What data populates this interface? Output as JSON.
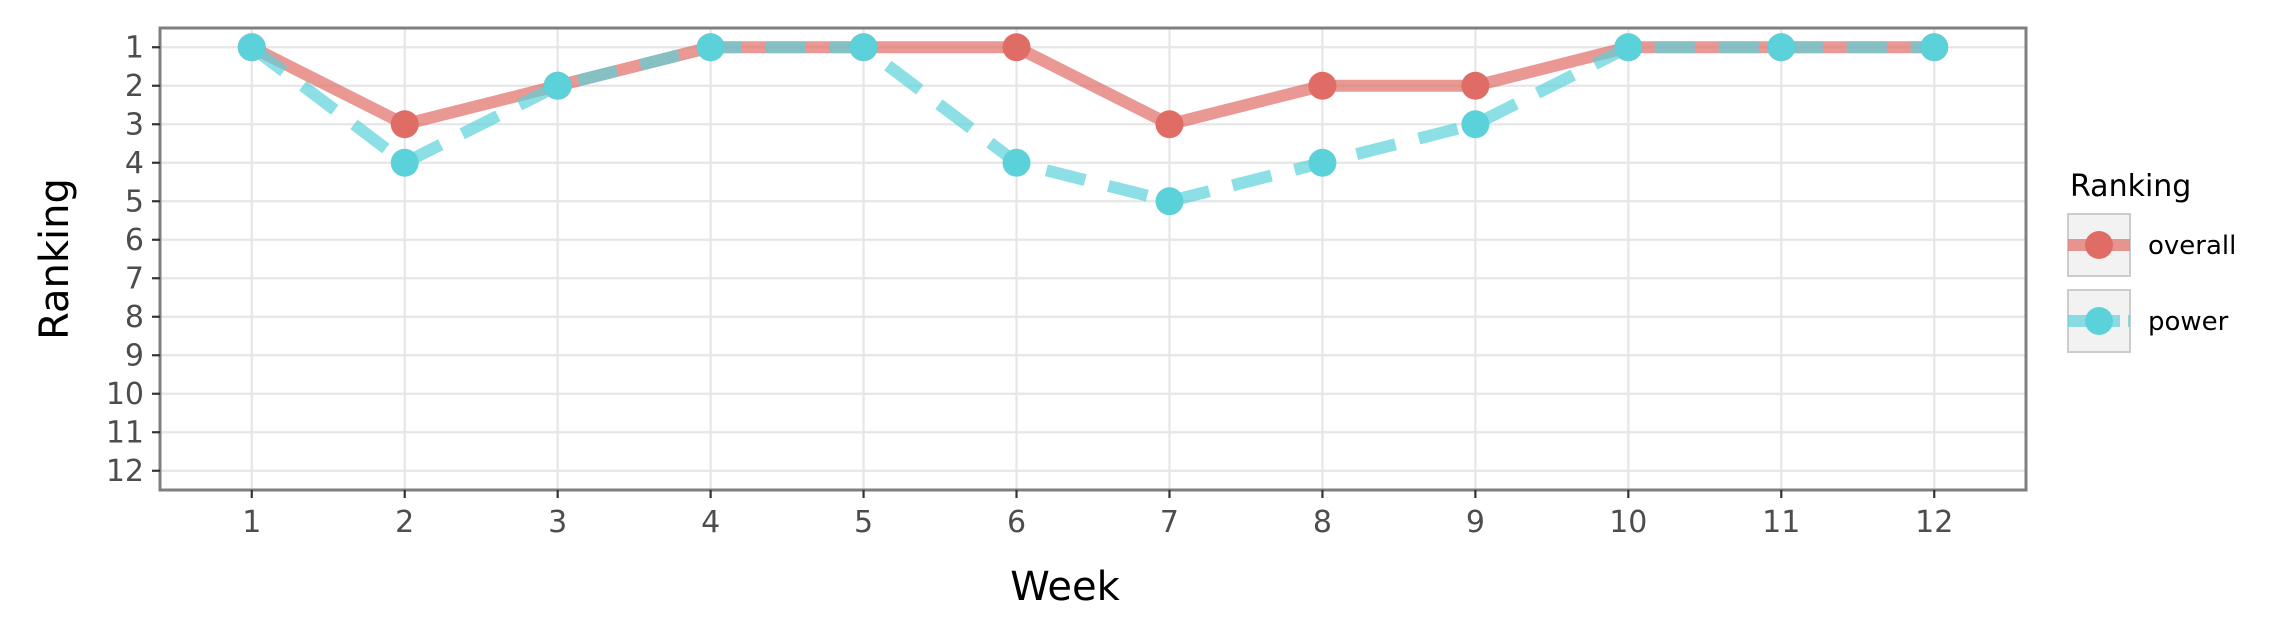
{
  "chart_data": {
    "type": "line",
    "xlabel": "Week",
    "ylabel": "Ranking",
    "x": [
      1,
      2,
      3,
      4,
      5,
      6,
      7,
      8,
      9,
      10,
      11,
      12
    ],
    "xlim": [
      0.4,
      12.6
    ],
    "ylim": [
      12.5,
      0.5
    ],
    "y_reversed": true,
    "y_ticks": [
      1,
      2,
      3,
      4,
      5,
      6,
      7,
      8,
      9,
      10,
      11,
      12
    ],
    "grid": true,
    "legend": {
      "title": "Ranking",
      "placement": "right"
    },
    "series": [
      {
        "name": "overall",
        "values": [
          1,
          3,
          2,
          1,
          1,
          1,
          3,
          2,
          2,
          1,
          1,
          1
        ],
        "color": "#e06c66",
        "line_style": "solid"
      },
      {
        "name": "power",
        "values": [
          1,
          4,
          2,
          1,
          1,
          4,
          5,
          4,
          3,
          1,
          1,
          1
        ],
        "color": "#5bd2da",
        "line_style": "dashed"
      }
    ]
  }
}
